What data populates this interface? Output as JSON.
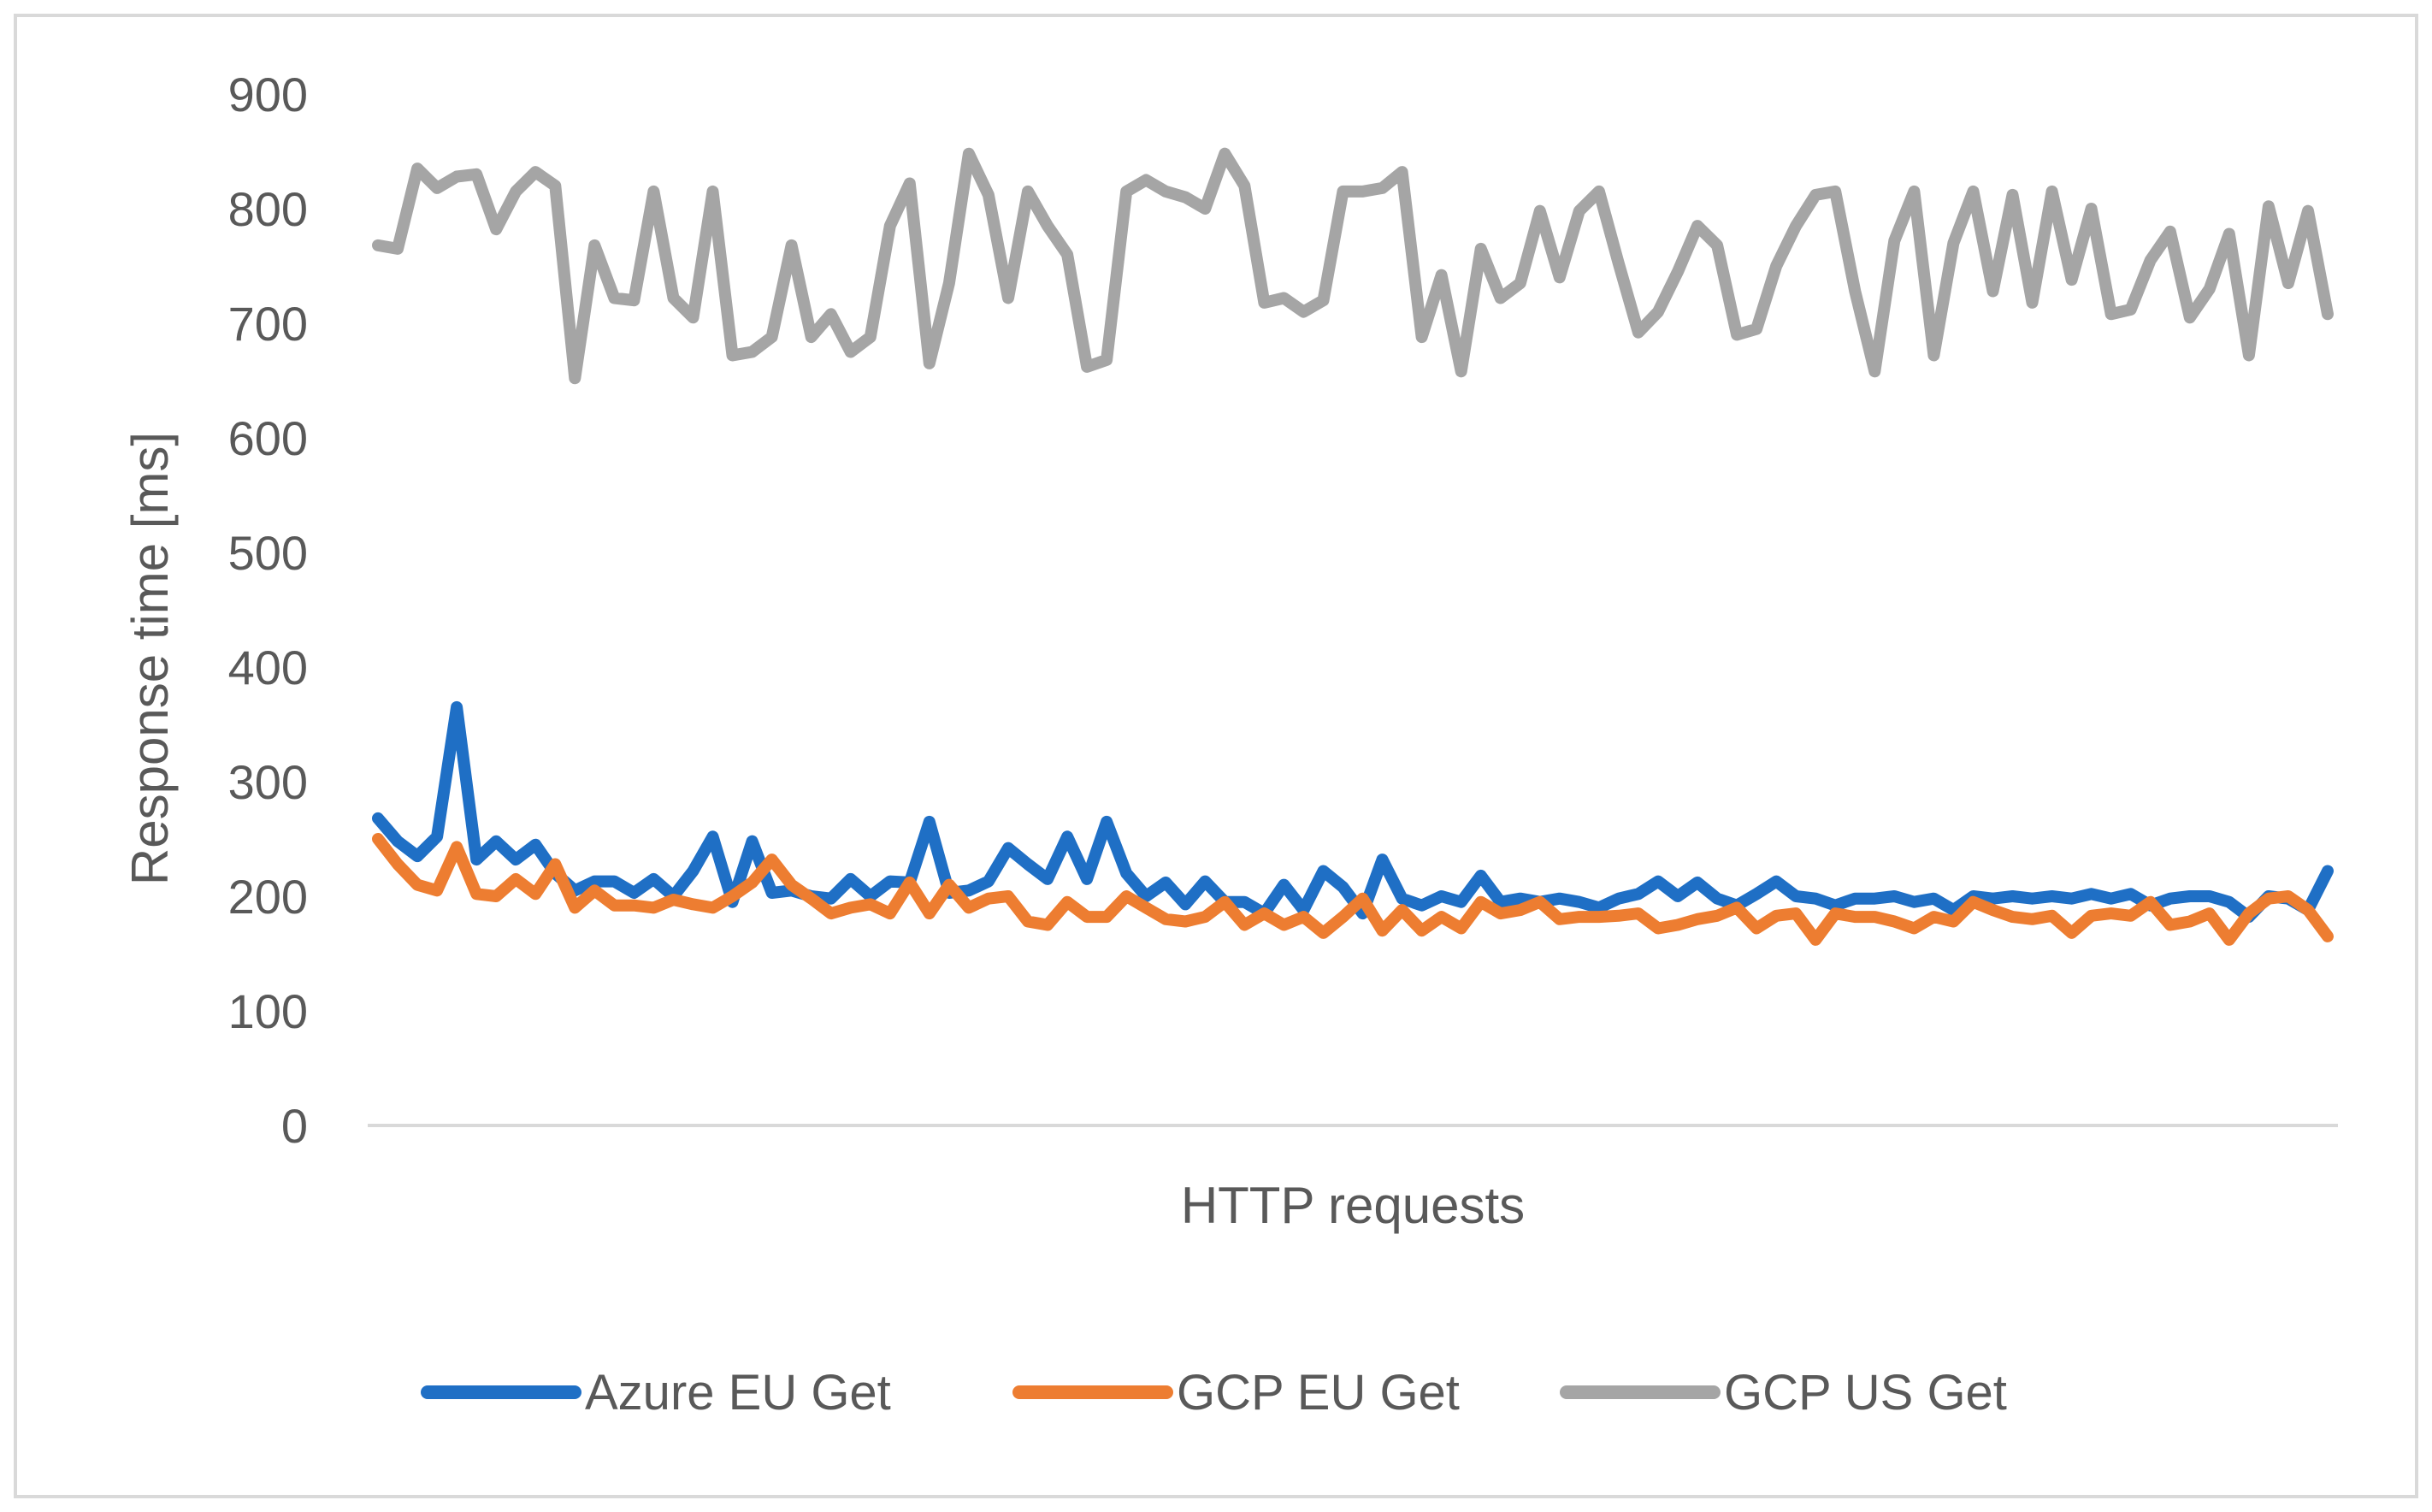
{
  "chart_data": {
    "type": "line",
    "xlabel": "HTTP requests",
    "ylabel": "Response time [ms]",
    "ylim": [
      0,
      900
    ],
    "yticks": [
      0,
      100,
      200,
      300,
      400,
      500,
      600,
      700,
      800,
      900
    ],
    "grid": false,
    "legend_position": "bottom",
    "x": [
      1,
      2,
      3,
      4,
      5,
      6,
      7,
      8,
      9,
      10,
      11,
      12,
      13,
      14,
      15,
      16,
      17,
      18,
      19,
      20,
      21,
      22,
      23,
      24,
      25,
      26,
      27,
      28,
      29,
      30,
      31,
      32,
      33,
      34,
      35,
      36,
      37,
      38,
      39,
      40,
      41,
      42,
      43,
      44,
      45,
      46,
      47,
      48,
      49,
      50,
      51,
      52,
      53,
      54,
      55,
      56,
      57,
      58,
      59,
      60,
      61,
      62,
      63,
      64,
      65,
      66,
      67,
      68,
      69,
      70,
      71,
      72,
      73,
      74,
      75,
      76,
      77,
      78,
      79,
      80,
      81,
      82,
      83,
      84,
      85,
      86,
      87,
      88,
      89,
      90,
      91,
      92,
      93,
      94,
      95,
      96,
      97,
      98,
      99,
      100
    ],
    "series": [
      {
        "name": "Azure EU Get",
        "color": "#1f6fc5",
        "values": [
          268,
          248,
          235,
          252,
          365,
          232,
          248,
          232,
          245,
          220,
          205,
          213,
          213,
          203,
          215,
          200,
          222,
          252,
          195,
          248,
          203,
          205,
          200,
          198,
          215,
          200,
          213,
          212,
          265,
          203,
          205,
          213,
          242,
          228,
          215,
          252,
          215,
          265,
          220,
          200,
          212,
          193,
          213,
          195,
          195,
          185,
          210,
          188,
          222,
          208,
          185,
          232,
          198,
          192,
          200,
          195,
          218,
          195,
          198,
          195,
          198,
          195,
          190,
          198,
          202,
          213,
          200,
          212,
          198,
          192,
          202,
          213,
          200,
          198,
          192,
          198,
          198,
          200,
          195,
          198,
          188,
          200,
          198,
          200,
          198,
          200,
          198,
          202,
          198,
          202,
          192,
          198,
          200,
          200,
          195,
          182,
          200,
          198,
          188,
          222
        ]
      },
      {
        "name": "GCP EU Get",
        "color": "#ed7d31",
        "values": [
          250,
          228,
          210,
          205,
          243,
          202,
          200,
          215,
          202,
          228,
          190,
          205,
          192,
          192,
          190,
          197,
          193,
          190,
          200,
          212,
          232,
          210,
          198,
          185,
          190,
          193,
          185,
          212,
          185,
          210,
          190,
          198,
          200,
          178,
          175,
          195,
          182,
          182,
          200,
          190,
          180,
          178,
          182,
          195,
          175,
          185,
          175,
          182,
          168,
          182,
          198,
          170,
          188,
          170,
          182,
          172,
          195,
          185,
          188,
          195,
          180,
          182,
          182,
          183,
          185,
          172,
          175,
          180,
          183,
          190,
          172,
          183,
          185,
          162,
          185,
          182,
          182,
          178,
          172,
          182,
          178,
          195,
          188,
          182,
          180,
          183,
          168,
          183,
          185,
          183,
          195,
          175,
          178,
          185,
          162,
          185,
          198,
          200,
          188,
          165
        ]
      },
      {
        "name": "GCP US Get",
        "color": "#a5a5a5",
        "values": [
          768,
          765,
          835,
          818,
          828,
          830,
          782,
          815,
          832,
          820,
          652,
          768,
          722,
          720,
          815,
          722,
          705,
          815,
          672,
          675,
          688,
          768,
          688,
          708,
          675,
          688,
          785,
          822,
          665,
          735,
          848,
          812,
          722,
          815,
          785,
          760,
          662,
          668,
          815,
          825,
          815,
          810,
          800,
          848,
          820,
          718,
          722,
          710,
          720,
          815,
          815,
          818,
          832,
          688,
          742,
          658,
          765,
          722,
          735,
          798,
          740,
          798,
          815,
          752,
          692,
          710,
          745,
          785,
          768,
          690,
          695,
          750,
          785,
          812,
          815,
          728,
          658,
          772,
          815,
          672,
          770,
          815,
          728,
          812,
          718,
          815,
          738,
          800,
          708,
          712,
          755,
          780,
          705,
          730,
          778,
          672,
          802,
          735,
          798,
          708
        ]
      }
    ]
  }
}
